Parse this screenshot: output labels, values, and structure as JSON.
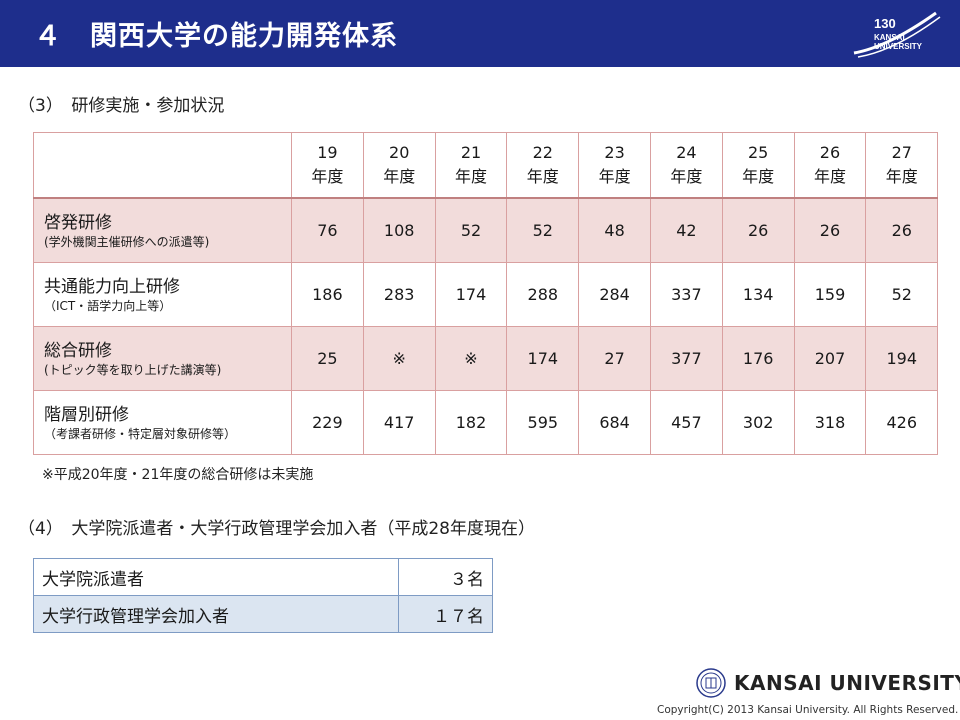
{
  "header": {
    "title": "４　関西大学の能力開発体系",
    "logo_text": [
      "130",
      "KANSAI",
      "UNIVERSITY"
    ]
  },
  "section3": {
    "heading": "（3）　研修実施・参加状況",
    "years": [
      {
        "num": "19",
        "unit": "年度"
      },
      {
        "num": "20",
        "unit": "年度"
      },
      {
        "num": "21",
        "unit": "年度"
      },
      {
        "num": "22",
        "unit": "年度"
      },
      {
        "num": "23",
        "unit": "年度"
      },
      {
        "num": "24",
        "unit": "年度"
      },
      {
        "num": "25",
        "unit": "年度"
      },
      {
        "num": "26",
        "unit": "年度"
      },
      {
        "num": "27",
        "unit": "年度"
      }
    ],
    "rows": [
      {
        "label": "啓発研修",
        "sub": "(学外機関主催研修への派遣等)",
        "values": [
          "76",
          "108",
          "52",
          "52",
          "48",
          "42",
          "26",
          "26",
          "26"
        ]
      },
      {
        "label": "共通能力向上研修",
        "sub": "（ICT・語学力向上等）",
        "values": [
          "186",
          "283",
          "174",
          "288",
          "284",
          "337",
          "134",
          "159",
          "52"
        ]
      },
      {
        "label": "総合研修",
        "sub": "(トピック等を取り上げた講演等)",
        "values": [
          "25",
          "※",
          "※",
          "174",
          "27",
          "377",
          "176",
          "207",
          "194"
        ]
      },
      {
        "label": "階層別研修",
        "sub": "（考課者研修・特定層対象研修等）",
        "values": [
          "229",
          "417",
          "182",
          "595",
          "684",
          "457",
          "302",
          "318",
          "426"
        ]
      }
    ],
    "note": "※平成20年度・21年度の総合研修は未実施"
  },
  "section4": {
    "heading": "（4）　大学院派遣者・大学行政管理学会加入者（平成28年度現在）",
    "rows": [
      {
        "label": "大学院派遣者",
        "value": "３名"
      },
      {
        "label": "大学行政管理学会加入者",
        "value": "１７名"
      }
    ]
  },
  "footer": {
    "brand": "KANSAI UNIVERSITY",
    "copyright": "Copyright(C) 2013 Kansai University. All Rights Reserved."
  },
  "colors": {
    "header_bg": "#1e2e8c",
    "table_shade": "#f2dcdb",
    "table_border": "#d9a0a0",
    "blue_row": "#dbe5f1",
    "blue_border": "#7e9bc4"
  }
}
